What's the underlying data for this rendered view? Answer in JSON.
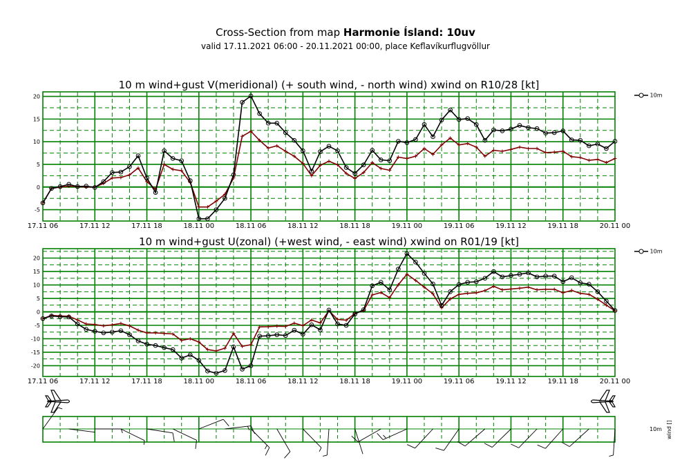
{
  "header": {
    "title_prefix": "Cross-Section from map ",
    "title_bold": "Harmonie Ísland: 10uv",
    "subtitle": "valid 17.11.2021 06:00 - 20.11.2021 00:00, place Keflavíkurflugvöllur"
  },
  "legend_label": "10m",
  "wind_strip": {
    "level_label": "10m",
    "variable_label": "wind []"
  },
  "colors": {
    "grid": "#008000",
    "gust": "#000000",
    "wind": "#800000",
    "background": "#ffffff"
  },
  "chart_data": [
    {
      "type": "line",
      "title": "10 m wind+gust V(meridional) (+ south wind, - north wind) xwind on R10/28 [kt]",
      "x_hours": [
        0,
        1,
        2,
        3,
        4,
        5,
        6,
        7,
        8,
        9,
        10,
        11,
        12,
        13,
        14,
        15,
        16,
        17,
        18,
        19,
        20,
        21,
        22,
        23,
        24,
        25,
        26,
        27,
        28,
        29,
        30,
        31,
        32,
        33,
        34,
        35,
        36,
        37,
        38,
        39,
        40,
        41,
        42,
        43,
        44,
        45,
        46,
        47,
        48,
        49,
        50,
        51,
        52,
        53,
        54,
        55,
        56,
        57,
        58,
        59,
        60,
        61,
        62,
        63,
        64,
        65,
        66
      ],
      "x_ticks": [
        "17.11 06",
        "17.11 12",
        "17.11 18",
        "18.11 00",
        "18.11 06",
        "18.11 12",
        "18.11 18",
        "19.11 00",
        "19.11 06",
        "19.11 12",
        "19.11 18",
        "20.11 00"
      ],
      "y_ticks": [
        20,
        15,
        10,
        5,
        0,
        -5
      ],
      "ylim": [
        -7.5,
        21
      ],
      "series": [
        {
          "name": "gust",
          "marker": "circle",
          "values": [
            -3.5,
            -0.3,
            0.1,
            0.6,
            0.1,
            0.2,
            -0.1,
            1.2,
            3.2,
            3.3,
            4.5,
            6.9,
            2.0,
            -1.2,
            8.0,
            6.3,
            5.8,
            1.4,
            -7.0,
            -7.0,
            -5.0,
            -2.5,
            2.7,
            18.7,
            20.1,
            16.2,
            14.1,
            14.1,
            12.0,
            10.3,
            8.0,
            3.5,
            7.8,
            9.0,
            8.0,
            4.3,
            3.0,
            4.9,
            8.1,
            6.0,
            5.8,
            10.1,
            9.8,
            10.5,
            13.8,
            11.1,
            14.8,
            17.0,
            14.9,
            15.1,
            13.8,
            10.3,
            12.6,
            12.4,
            12.8,
            13.6,
            13.1,
            12.9,
            11.9,
            12.0,
            12.4,
            10.4,
            10.3,
            9.1,
            9.5,
            8.5,
            10.1
          ]
        },
        {
          "name": "wind",
          "marker": "plus",
          "values": [
            -3.5,
            -0.3,
            0.0,
            0.2,
            0.1,
            0.0,
            0.0,
            0.8,
            2.0,
            2.1,
            2.7,
            4.2,
            1.2,
            -0.5,
            5.0,
            3.9,
            3.6,
            1.0,
            -4.4,
            -4.4,
            -3.1,
            -1.6,
            2.0,
            11.2,
            12.3,
            10.3,
            8.6,
            9.1,
            7.9,
            6.8,
            5.2,
            2.5,
            4.8,
            5.7,
            4.9,
            3.0,
            1.9,
            3.2,
            5.4,
            4.1,
            3.7,
            6.6,
            6.3,
            6.8,
            8.5,
            7.2,
            9.3,
            10.8,
            9.3,
            9.6,
            8.8,
            6.8,
            8.1,
            7.9,
            8.3,
            8.8,
            8.5,
            8.5,
            7.6,
            7.7,
            7.9,
            6.7,
            6.5,
            5.9,
            6.1,
            5.4,
            6.3
          ]
        }
      ]
    },
    {
      "type": "line",
      "title": "10 m wind+gust U(zonal) (+west wind, - east wind) xwind on R01/19 [kt]",
      "x_hours": [
        0,
        1,
        2,
        3,
        4,
        5,
        6,
        7,
        8,
        9,
        10,
        11,
        12,
        13,
        14,
        15,
        16,
        17,
        18,
        19,
        20,
        21,
        22,
        23,
        24,
        25,
        26,
        27,
        28,
        29,
        30,
        31,
        32,
        33,
        34,
        35,
        36,
        37,
        38,
        39,
        40,
        41,
        42,
        43,
        44,
        45,
        46,
        47,
        48,
        49,
        50,
        51,
        52,
        53,
        54,
        55,
        56,
        57,
        58,
        59,
        60,
        61,
        62,
        63,
        64,
        65,
        66
      ],
      "x_ticks": [
        "17.11 06",
        "17.11 12",
        "17.11 18",
        "18.11 00",
        "18.11 06",
        "18.11 12",
        "18.11 18",
        "19.11 00",
        "19.11 06",
        "19.11 12",
        "19.11 18",
        "20.11 00"
      ],
      "y_ticks": [
        20,
        15,
        10,
        5,
        0,
        -5,
        -10,
        -15,
        -20
      ],
      "ylim": [
        -24,
        23.5
      ],
      "series": [
        {
          "name": "gust",
          "marker": "circle",
          "values": [
            -2.5,
            -1.5,
            -1.8,
            -1.9,
            -4.5,
            -6.5,
            -7.2,
            -7.8,
            -7.5,
            -7.0,
            -8.5,
            -10.8,
            -12.0,
            -12.5,
            -13.3,
            -14.0,
            -17.2,
            -16.0,
            -18.0,
            -22.0,
            -22.8,
            -21.8,
            -13.0,
            -21.3,
            -20.0,
            -9.0,
            -8.9,
            -8.5,
            -8.8,
            -6.8,
            -8.3,
            -4.8,
            -6.7,
            0.7,
            -4.5,
            -5.0,
            -0.8,
            0.8,
            9.7,
            11.0,
            8.2,
            15.9,
            21.7,
            18.5,
            14.3,
            10.4,
            2.4,
            7.5,
            10.2,
            11.0,
            11.2,
            12.5,
            15.0,
            13.0,
            13.5,
            14.0,
            14.5,
            13.0,
            13.3,
            13.3,
            11.2,
            12.7,
            10.8,
            10.3,
            7.5,
            4.0,
            0.5
          ]
        },
        {
          "name": "wind",
          "marker": "plus",
          "values": [
            -2.5,
            -1.3,
            -1.5,
            -1.6,
            -3.0,
            -4.5,
            -4.7,
            -5.2,
            -4.8,
            -4.3,
            -5.2,
            -6.8,
            -7.8,
            -7.8,
            -8.0,
            -8.2,
            -10.6,
            -10.0,
            -11.2,
            -14.0,
            -14.5,
            -13.5,
            -8.0,
            -12.8,
            -12.2,
            -5.6,
            -5.5,
            -5.3,
            -5.4,
            -4.2,
            -5.1,
            -3.0,
            -4.1,
            0.4,
            -2.8,
            -3.1,
            -0.6,
            0.5,
            6.3,
            7.2,
            5.3,
            10.1,
            14.0,
            11.7,
            9.2,
            6.7,
            1.5,
            4.8,
            6.5,
            6.9,
            7.1,
            7.9,
            9.5,
            8.2,
            8.5,
            8.8,
            9.2,
            8.2,
            8.4,
            8.4,
            7.1,
            8.0,
            6.9,
            6.5,
            4.7,
            2.5,
            0.4
          ]
        }
      ]
    }
  ]
}
